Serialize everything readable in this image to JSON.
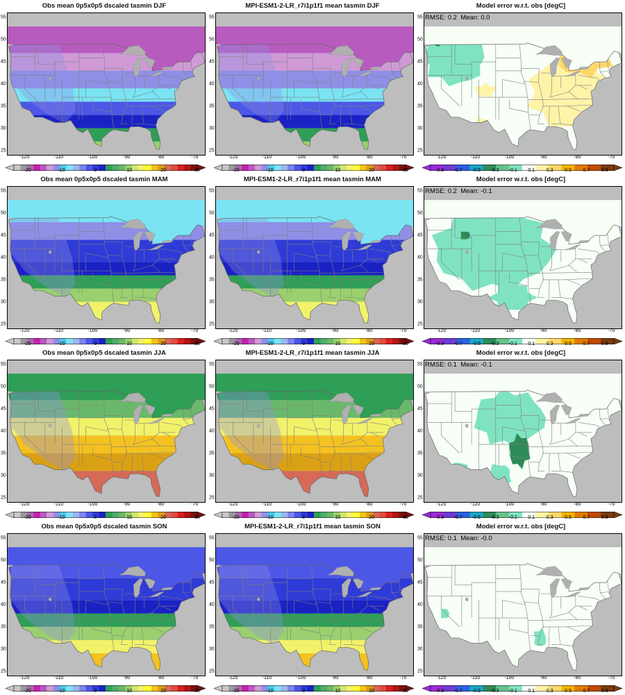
{
  "x_ticks": [
    "-120",
    "-110",
    "-100",
    "-90",
    "-80",
    "-70"
  ],
  "x_tick_values": [
    -120,
    -110,
    -100,
    -90,
    -80,
    -70
  ],
  "y_ticks": [
    "55",
    "50",
    "45",
    "40",
    "35",
    "30",
    "25"
  ],
  "y_tick_values": [
    55,
    50,
    45,
    40,
    35,
    30,
    25
  ],
  "lon_range": [
    -125,
    -67
  ],
  "lat_range": [
    24,
    56
  ],
  "colorbars": {
    "temp": {
      "labels": [
        "-20",
        "-10",
        "0",
        "10",
        "20",
        "30"
      ],
      "label_values": [
        -20,
        -10,
        0,
        10,
        20,
        30
      ],
      "range": [
        -24,
        30
      ],
      "colors": [
        "#c8c8c8",
        "#999999",
        "#a36aa6",
        "#c71fb3",
        "#b85bbf",
        "#cf9ad6",
        "#8f8fe6",
        "#4fc8ea",
        "#7ae4f3",
        "#9fb4f1",
        "#7d84ec",
        "#4d57e6",
        "#2f3bd6",
        "#1a22c4",
        "#2f9e56",
        "#4fae6a",
        "#6ab86b",
        "#9bd06e",
        "#cfe86d",
        "#f2f26a",
        "#ffff33",
        "#f4c220",
        "#dba114",
        "#d46a57",
        "#e34b40",
        "#d91f1f",
        "#b01515",
        "#7a1010"
      ]
    },
    "error": {
      "labels": [
        "-0.9",
        "-0.7",
        "-0.5",
        "-0.3",
        "-0.1",
        "0.1",
        "0.3",
        "0.5",
        "0.7",
        "0.9"
      ],
      "label_values": [
        -0.9,
        -0.7,
        -0.5,
        -0.3,
        -0.1,
        0.1,
        0.3,
        0.5,
        0.7,
        0.9
      ],
      "range": [
        -1.0,
        1.0
      ],
      "colors": [
        "#9a2bd8",
        "#6d3cd1",
        "#2b61e3",
        "#1aa6c9",
        "#2e8b57",
        "#66c28c",
        "#7fe3c2",
        "#f7fff7",
        "#fff3a8",
        "#ffd86b",
        "#f4b400",
        "#e07b00",
        "#c24a00",
        "#7a3b10"
      ]
    }
  },
  "rows": [
    {
      "season": "DJF",
      "panels": [
        {
          "title": "Obs mean 0p5x0p5 dscaled tasmin DJF",
          "kind": "temp"
        },
        {
          "title": "MPI-ESM1-2-LR_r7i1p1f1 mean tasmin DJF",
          "kind": "temp"
        },
        {
          "title": "Model error w.r.t. obs [degC]",
          "kind": "error",
          "rmse": "RMSE: 0.2",
          "mean": "Mean: 0.0"
        }
      ]
    },
    {
      "season": "MAM",
      "panels": [
        {
          "title": "Obs mean 0p5x0p5 dscaled tasmin MAM",
          "kind": "temp"
        },
        {
          "title": "MPI-ESM1-2-LR_r7i1p1f1 mean tasmin MAM",
          "kind": "temp"
        },
        {
          "title": "Model error w.r.t. obs [degC]",
          "kind": "error",
          "rmse": "RMSE: 0.2",
          "mean": "Mean: -0.1"
        }
      ]
    },
    {
      "season": "JJA",
      "panels": [
        {
          "title": "Obs mean 0p5x0p5 dscaled tasmin JJA",
          "kind": "temp"
        },
        {
          "title": "MPI-ESM1-2-LR_r7i1p1f1 mean tasmin JJA",
          "kind": "temp"
        },
        {
          "title": "Model error w.r.t. obs [degC]",
          "kind": "error",
          "rmse": "RMSE: 0.1",
          "mean": "Mean: -0.1"
        }
      ]
    },
    {
      "season": "SON",
      "panels": [
        {
          "title": "Obs mean 0p5x0p5 dscaled tasmin SON",
          "kind": "temp"
        },
        {
          "title": "MPI-ESM1-2-LR_r7i1p1f1 mean tasmin SON",
          "kind": "temp"
        },
        {
          "title": "Model error w.r.t. obs [degC]",
          "kind": "error",
          "rmse": "RMSE: 0.1",
          "mean": "Mean: -0.0"
        }
      ]
    }
  ],
  "colors": {
    "ocean": "#bdbdbd",
    "lakes": "#b0b0b0",
    "borders": "#7f7f7f",
    "frame": "#000000",
    "land_error_neutral": "#f7fff7"
  }
}
